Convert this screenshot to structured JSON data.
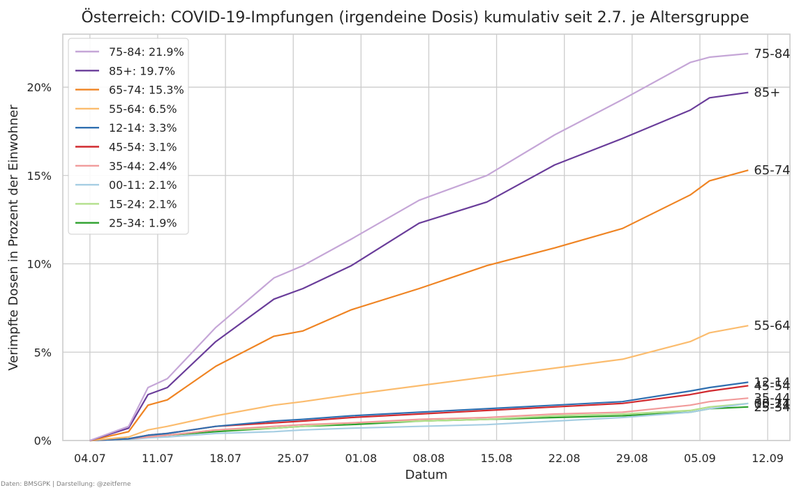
{
  "chart_data": {
    "type": "line",
    "title": "Österreich: COVID-19-Impfungen (irgendeine Dosis) kumulativ seit 2.7. je Altersgruppe",
    "xlabel": "Datum",
    "ylabel": "Verimpfte Dosen in Prozent der Einwohner",
    "x_tick_labels": [
      "04.07",
      "11.07",
      "18.07",
      "25.07",
      "01.08",
      "08.08",
      "15.08",
      "22.08",
      "29.08",
      "05.09",
      "12.09"
    ],
    "x_range_days": [
      -2.8,
      72.3
    ],
    "x": [
      0,
      4,
      6,
      8,
      13,
      19,
      22,
      27,
      34,
      41,
      48,
      55,
      62,
      64,
      68
    ],
    "y_tick_labels": [
      "0%",
      "5%",
      "10%",
      "15%",
      "20%"
    ],
    "y_ticks": [
      0,
      5,
      10,
      15,
      20
    ],
    "ylim": [
      0,
      23
    ],
    "grid": true,
    "legend_position": "top-left",
    "series": [
      {
        "name": "75-84",
        "legend": "75-84: 21.9%",
        "end_label": "75-84",
        "color": "#c5a6d7",
        "values": [
          0,
          0.8,
          3.0,
          3.5,
          6.4,
          9.2,
          9.9,
          11.4,
          13.6,
          15.0,
          17.3,
          19.3,
          21.4,
          21.7,
          21.9
        ]
      },
      {
        "name": "85+",
        "legend": "85+: 19.7%",
        "end_label": "85+",
        "color": "#6a3d9a",
        "values": [
          0,
          0.7,
          2.6,
          3.0,
          5.6,
          8.0,
          8.6,
          9.9,
          12.3,
          13.5,
          15.6,
          17.1,
          18.7,
          19.4,
          19.7
        ]
      },
      {
        "name": "65-74",
        "legend": "65-74: 15.3%",
        "end_label": "65-74",
        "color": "#ef8423",
        "values": [
          0,
          0.5,
          2.0,
          2.3,
          4.2,
          5.9,
          6.2,
          7.4,
          8.6,
          9.9,
          10.9,
          12.0,
          13.9,
          14.7,
          15.3
        ]
      },
      {
        "name": "55-64",
        "legend": "55-64: 6.5%",
        "end_label": "55-64",
        "color": "#fbbc6e",
        "values": [
          0,
          0.2,
          0.6,
          0.8,
          1.4,
          2.0,
          2.2,
          2.6,
          3.1,
          3.6,
          4.1,
          4.6,
          5.6,
          6.1,
          6.5
        ]
      },
      {
        "name": "12-14",
        "legend": "12-14: 3.3%",
        "end_label": "12-14",
        "color": "#2f6fb0",
        "values": [
          0,
          0.1,
          0.3,
          0.4,
          0.8,
          1.1,
          1.2,
          1.4,
          1.6,
          1.8,
          2.0,
          2.2,
          2.8,
          3.0,
          3.3
        ]
      },
      {
        "name": "45-54",
        "legend": "45-54: 3.1%",
        "end_label": "45-54",
        "color": "#d12a2f",
        "values": [
          0,
          0.1,
          0.3,
          0.4,
          0.8,
          1.0,
          1.1,
          1.3,
          1.5,
          1.7,
          1.9,
          2.1,
          2.6,
          2.8,
          3.1
        ]
      },
      {
        "name": "35-44",
        "legend": "35-44: 2.4%",
        "end_label": "35-44",
        "color": "#f19b9b",
        "values": [
          0,
          0.1,
          0.2,
          0.3,
          0.6,
          0.8,
          0.9,
          1.0,
          1.2,
          1.3,
          1.5,
          1.6,
          2.0,
          2.2,
          2.4
        ]
      },
      {
        "name": "00-11",
        "legend": "00-11: 2.1%",
        "end_label": "00-11",
        "color": "#a6cee3",
        "values": [
          0,
          0.05,
          0.15,
          0.2,
          0.4,
          0.5,
          0.6,
          0.7,
          0.8,
          0.9,
          1.1,
          1.3,
          1.6,
          1.8,
          2.1
        ]
      },
      {
        "name": "15-24",
        "legend": "15-24: 2.1%",
        "end_label": "15-24",
        "color": "#b2df8a",
        "values": [
          0,
          0.1,
          0.2,
          0.3,
          0.6,
          0.7,
          0.8,
          1.0,
          1.1,
          1.2,
          1.4,
          1.5,
          1.7,
          1.9,
          2.1
        ]
      },
      {
        "name": "25-34",
        "legend": "25-34: 1.9%",
        "end_label": "25-34",
        "color": "#2ca02c",
        "values": [
          0,
          0.1,
          0.2,
          0.3,
          0.5,
          0.7,
          0.8,
          0.9,
          1.1,
          1.2,
          1.3,
          1.4,
          1.6,
          1.8,
          1.9
        ]
      }
    ]
  },
  "source_note": "Daten: BMSGPK | Darstellung: @zeitferne"
}
